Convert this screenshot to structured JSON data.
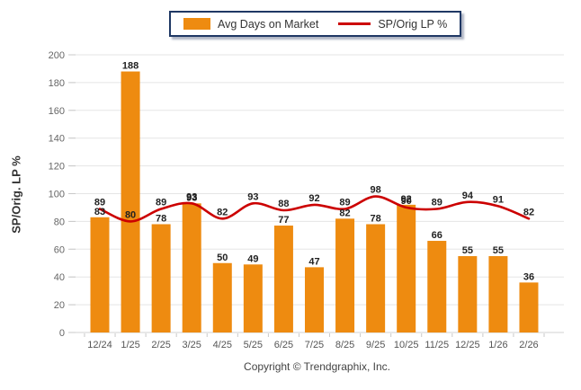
{
  "legend": {
    "items": [
      {
        "label": "Avg Days on Market",
        "type": "bar",
        "color": "#EE8B10"
      },
      {
        "label": "SP/Orig LP %",
        "type": "line",
        "color": "#CC0000"
      }
    ]
  },
  "chart_data": {
    "type": "bar+line",
    "title": "",
    "xlabel": "",
    "ylabel": "SP/Orig. LP %",
    "ylim": [
      0,
      200
    ],
    "yticks": [
      0,
      20,
      40,
      60,
      80,
      100,
      120,
      140,
      160,
      180,
      200
    ],
    "grid": true,
    "legend_position": "top",
    "categories": [
      "12/24",
      "1/25",
      "2/25",
      "3/25",
      "4/25",
      "5/25",
      "6/25",
      "7/25",
      "8/25",
      "9/25",
      "10/25",
      "11/25",
      "12/25",
      "1/26",
      "2/26"
    ],
    "series": [
      {
        "name": "Avg Days on Market",
        "type": "bar",
        "color": "#EE8B10",
        "values": [
          83,
          188,
          78,
          93,
          50,
          49,
          77,
          47,
          82,
          78,
          92,
          66,
          55,
          55,
          36
        ]
      },
      {
        "name": "SP/Orig LP %",
        "type": "line",
        "color": "#CC0000",
        "values": [
          89,
          80,
          89,
          93,
          82,
          93,
          88,
          92,
          89,
          98,
          90,
          89,
          94,
          91,
          82
        ]
      }
    ]
  },
  "footer": {
    "copyright": "Copyright © Trendgraphix, Inc."
  },
  "colors": {
    "bar": "#EE8B10",
    "line": "#CC0000",
    "legend_border": "#1F3864",
    "gridline": "#e5e5e5",
    "axis_tick": "#c9c9c9",
    "tick_label": "#666666",
    "data_label": "#222222",
    "x_label": "#555555"
  }
}
